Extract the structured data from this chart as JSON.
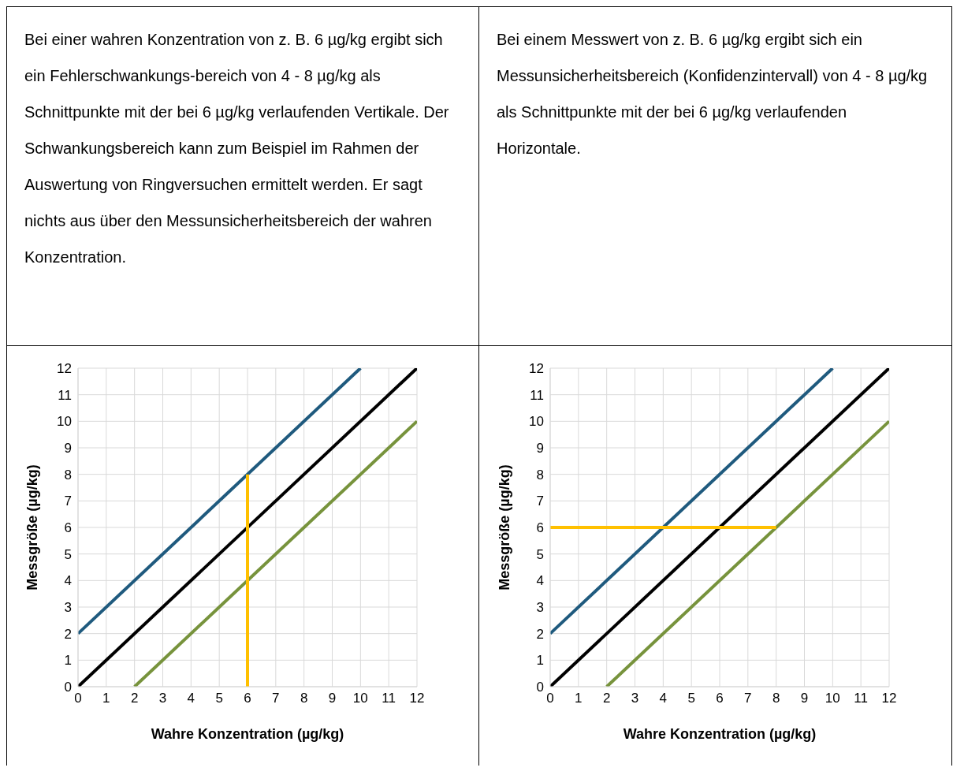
{
  "chart_data": [
    {
      "type": "line",
      "annotations": [
        "Bei einer wahren Konzentration von z. B. 6 µg/kg ergibt sich ein Fehlerschwankungs-bereich von 4 - 8 µg/kg als Schnittpunkte mit der bei 6 µg/kg verlaufenden  Vertikale. Der Schwankungsbereich kann zum Beispiel im Rahmen der Auswertung von Ringversuchen ermittelt werden. Er sagt nichts aus über den Messunsicherheitsbereich der wahren Konzentration."
      ],
      "xlabel": "Wahre Konzentration (µg/kg)",
      "ylabel": "Messgröße (µg/kg)",
      "xlim": [
        0,
        12
      ],
      "ylim": [
        0,
        12
      ],
      "xticks": [
        0,
        1,
        2,
        3,
        4,
        5,
        6,
        7,
        8,
        9,
        10,
        11,
        12
      ],
      "yticks": [
        0,
        1,
        2,
        3,
        4,
        5,
        6,
        7,
        8,
        9,
        10,
        11,
        12
      ],
      "grid": true,
      "legend": false,
      "marker": "none",
      "line_style": "solid",
      "series": [
        {
          "color": "#1f5a7e",
          "x": [
            0,
            10
          ],
          "values": [
            2,
            12
          ]
        },
        {
          "color": "#000000",
          "x": [
            0,
            12
          ],
          "values": [
            0,
            12
          ]
        },
        {
          "color": "#77933c",
          "x": [
            2,
            12
          ],
          "values": [
            0,
            10
          ]
        },
        {
          "color": "#ffc000",
          "x": [
            6,
            6
          ],
          "values": [
            0,
            8
          ]
        }
      ]
    },
    {
      "type": "line",
      "annotations": [
        "Bei einem Messwert von z. B. 6 µg/kg ergibt sich ein Messunsicherheitsbereich (Konfidenzintervall) von 4 - 8 µg/kg als Schnittpunkte mit der bei 6 µg/kg verlaufenden Horizontale."
      ],
      "xlabel": "Wahre Konzentration (µg/kg)",
      "ylabel": "Messgröße (µg/kg)",
      "xlim": [
        0,
        12
      ],
      "ylim": [
        0,
        12
      ],
      "xticks": [
        0,
        1,
        2,
        3,
        4,
        5,
        6,
        7,
        8,
        9,
        10,
        11,
        12
      ],
      "yticks": [
        0,
        1,
        2,
        3,
        4,
        5,
        6,
        7,
        8,
        9,
        10,
        11,
        12
      ],
      "grid": true,
      "legend": false,
      "marker": "none",
      "line_style": "solid",
      "series": [
        {
          "color": "#1f5a7e",
          "x": [
            0,
            10
          ],
          "values": [
            2,
            12
          ]
        },
        {
          "color": "#000000",
          "x": [
            0,
            12
          ],
          "values": [
            0,
            12
          ]
        },
        {
          "color": "#77933c",
          "x": [
            2,
            12
          ],
          "values": [
            0,
            10
          ]
        },
        {
          "color": "#ffc000",
          "x": [
            0,
            8
          ],
          "values": [
            6,
            6
          ]
        }
      ]
    }
  ]
}
